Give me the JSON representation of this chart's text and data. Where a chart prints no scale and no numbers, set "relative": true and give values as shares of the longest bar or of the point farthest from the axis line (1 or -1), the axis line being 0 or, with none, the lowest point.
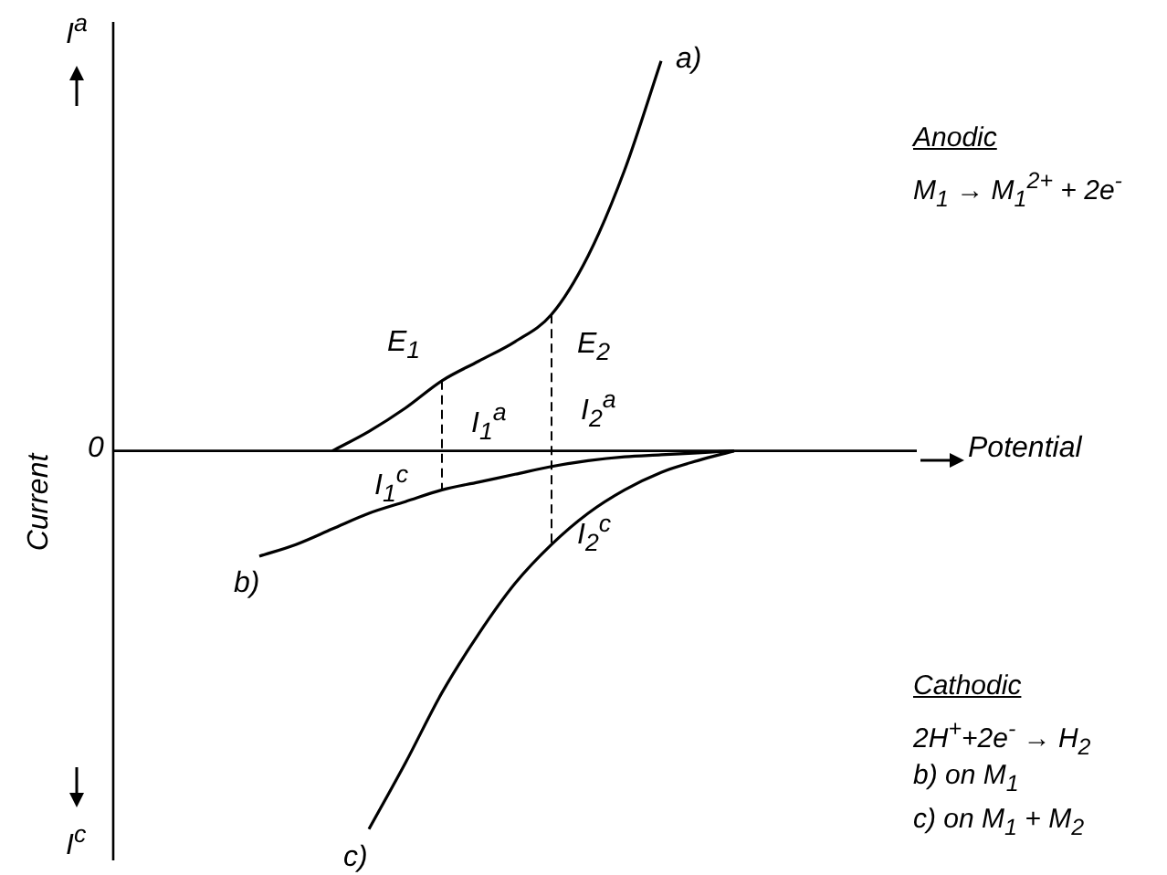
{
  "chart_data": {
    "type": "line",
    "relative": true,
    "xlabel": "Potential",
    "ylabel": "Current",
    "legend": false,
    "marker": "none",
    "line_style": "solid",
    "categories": [
      null,
      null,
      null,
      null,
      null,
      null,
      null,
      null,
      null,
      null,
      null,
      null,
      null,
      null,
      null,
      null,
      null,
      null,
      null,
      null,
      null,
      null,
      null
    ],
    "series": [
      {
        "name": "a)",
        "color": "#000000",
        "values": [
          null,
          null,
          null,
          null,
          null,
          null,
          0,
          0.05,
          0.11,
          0.18,
          0.23,
          0.28,
          0.35,
          0.5,
          0.72,
          1,
          null,
          null,
          null,
          null,
          null,
          null,
          null
        ]
      },
      {
        "name": "b)",
        "color": "#000000",
        "values": [
          null,
          null,
          null,
          null,
          -0.27,
          -0.24,
          -0.2,
          -0.16,
          -0.13,
          -0.1,
          -0.08,
          -0.06,
          -0.04,
          -0.025,
          -0.015,
          -0.01,
          -0.005,
          0,
          null,
          null,
          null,
          null,
          null
        ]
      },
      {
        "name": "c)",
        "color": "#000000",
        "values": [
          null,
          null,
          null,
          null,
          null,
          null,
          null,
          -0.97,
          -0.8,
          -0.62,
          -0.47,
          -0.34,
          -0.24,
          -0.16,
          -0.1,
          -0.055,
          -0.025,
          0,
          null,
          null,
          null,
          null,
          null
        ]
      }
    ],
    "annotations": [
      "I$^{a}$",
      "I$^{c}$",
      "0",
      "E$_{1}$",
      "E$_{2}$",
      "I$_{1}$$^{a}$",
      "I$_{2}$$^{a}$",
      "I$_{1}$$^{c}$",
      "I$_{2}$$^{c}$",
      "Anodic",
      "M$_{1}$ → M$_{1}$$^{2+}$ + 2e$^{-}$",
      "Cathodic",
      "2H$^{+}$+2e$^{-}$ → H$_{2}$",
      "b) on M$_{1}$",
      "c) on M$_{1}$ + M$_{2}$"
    ]
  }
}
